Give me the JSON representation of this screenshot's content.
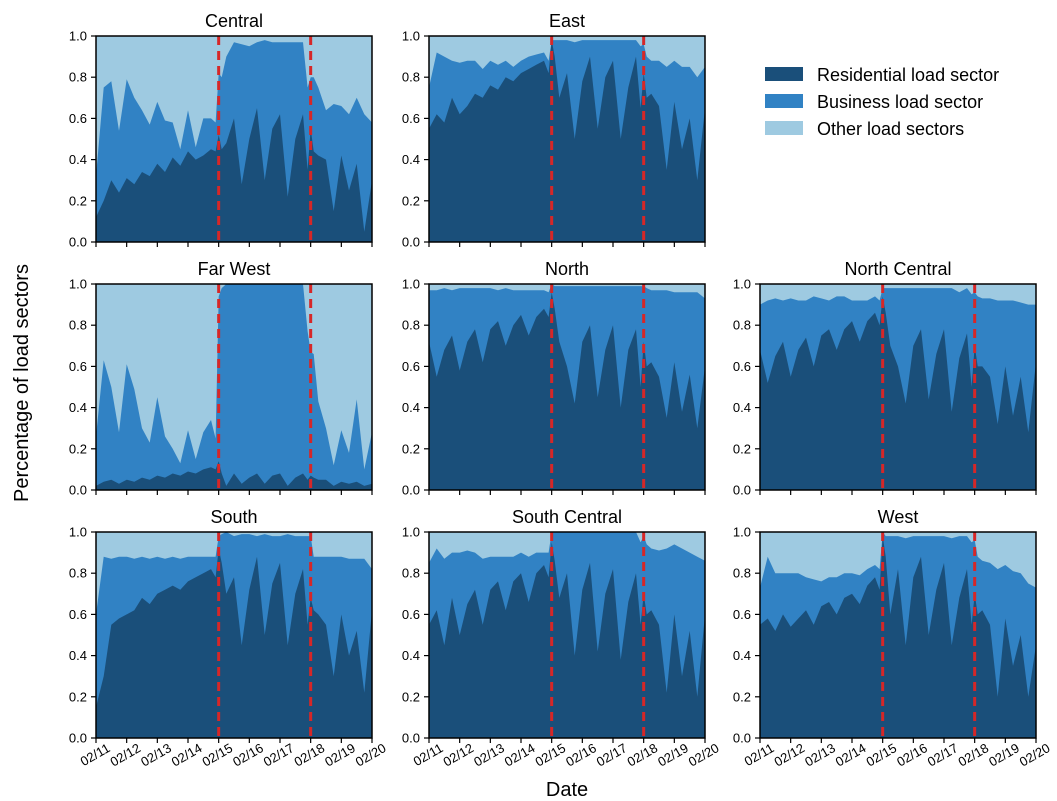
{
  "figure": {
    "ylabel": "Percentage of load sectors",
    "xlabel": "Date"
  },
  "legend": {
    "placement": "top-right",
    "items": [
      {
        "label": "Residential load sector",
        "color": "#1a4f7a"
      },
      {
        "label": "Business load sector",
        "color": "#3182c4"
      },
      {
        "label": "Other load sectors",
        "color": "#9ecae1"
      }
    ]
  },
  "chart_data": {
    "type": "area",
    "stacked": true,
    "x_ticks": [
      "02/11",
      "02/12",
      "02/13",
      "02/14",
      "02/15",
      "02/16",
      "02/17",
      "02/18",
      "02/19",
      "02/20"
    ],
    "y_ticks": [
      "0.0",
      "0.2",
      "0.4",
      "0.6",
      "0.8",
      "1.0"
    ],
    "xlim": [
      "02/11",
      "02/20"
    ],
    "ylim": [
      0,
      1
    ],
    "event_lines": {
      "dates": [
        "02/15",
        "02/18"
      ],
      "color": "#d62728",
      "style": "dashed"
    },
    "series_colors": {
      "residential": "#1a4f7a",
      "business": "#3182c4",
      "other": "#9ecae1"
    },
    "panels": [
      {
        "title": "Central",
        "x": [
          0,
          0.25,
          0.5,
          0.75,
          1,
          1.25,
          1.5,
          1.75,
          2,
          2.25,
          2.5,
          2.75,
          3,
          3.25,
          3.5,
          3.75,
          3.9,
          4.0,
          4.1,
          4.25,
          4.5,
          4.75,
          5,
          5.25,
          5.5,
          5.75,
          6,
          6.25,
          6.5,
          6.75,
          6.9,
          7.0,
          7.1,
          7.25,
          7.5,
          7.75,
          8,
          8.25,
          8.5,
          8.75,
          9
        ],
        "residential": [
          0.12,
          0.2,
          0.3,
          0.24,
          0.31,
          0.28,
          0.34,
          0.32,
          0.38,
          0.34,
          0.41,
          0.37,
          0.44,
          0.4,
          0.42,
          0.45,
          0.44,
          0.52,
          0.45,
          0.48,
          0.6,
          0.28,
          0.5,
          0.65,
          0.3,
          0.55,
          0.62,
          0.22,
          0.5,
          0.62,
          0.35,
          0.55,
          0.44,
          0.42,
          0.4,
          0.15,
          0.42,
          0.25,
          0.38,
          0.05,
          0.3
        ],
        "business": [
          0.2,
          0.55,
          0.48,
          0.3,
          0.48,
          0.42,
          0.3,
          0.25,
          0.3,
          0.25,
          0.17,
          0.08,
          0.2,
          0.06,
          0.18,
          0.15,
          0.14,
          0.3,
          0.35,
          0.42,
          0.37,
          0.68,
          0.45,
          0.32,
          0.68,
          0.42,
          0.35,
          0.75,
          0.47,
          0.35,
          0.4,
          0.25,
          0.36,
          0.33,
          0.24,
          0.52,
          0.24,
          0.37,
          0.32,
          0.57,
          0.28
        ]
      },
      {
        "title": "East",
        "x": [
          0,
          0.25,
          0.5,
          0.75,
          1,
          1.25,
          1.5,
          1.75,
          2,
          2.25,
          2.5,
          2.75,
          3,
          3.25,
          3.5,
          3.75,
          3.9,
          4.0,
          4.1,
          4.25,
          4.5,
          4.75,
          5,
          5.25,
          5.5,
          5.75,
          6,
          6.25,
          6.5,
          6.75,
          6.9,
          7.0,
          7.1,
          7.25,
          7.5,
          7.75,
          8,
          8.25,
          8.5,
          8.75,
          9
        ],
        "residential": [
          0.55,
          0.62,
          0.58,
          0.7,
          0.62,
          0.66,
          0.72,
          0.7,
          0.76,
          0.74,
          0.8,
          0.78,
          0.82,
          0.84,
          0.86,
          0.88,
          0.82,
          0.98,
          0.9,
          0.7,
          0.82,
          0.5,
          0.78,
          0.9,
          0.55,
          0.8,
          0.88,
          0.5,
          0.75,
          0.9,
          0.65,
          0.82,
          0.7,
          0.72,
          0.66,
          0.35,
          0.68,
          0.45,
          0.6,
          0.3,
          0.65
        ],
        "business": [
          0.2,
          0.3,
          0.32,
          0.18,
          0.25,
          0.22,
          0.16,
          0.14,
          0.12,
          0.12,
          0.08,
          0.07,
          0.06,
          0.06,
          0.05,
          0.04,
          0.06,
          0.0,
          0.08,
          0.28,
          0.16,
          0.47,
          0.2,
          0.08,
          0.43,
          0.18,
          0.1,
          0.48,
          0.23,
          0.08,
          0.3,
          0.14,
          0.2,
          0.16,
          0.22,
          0.5,
          0.2,
          0.4,
          0.25,
          0.5,
          0.2
        ]
      },
      {
        "title": "Far West",
        "x": [
          0,
          0.25,
          0.5,
          0.75,
          1,
          1.25,
          1.5,
          1.75,
          2,
          2.25,
          2.5,
          2.75,
          3,
          3.25,
          3.5,
          3.75,
          3.9,
          4.0,
          4.1,
          4.25,
          4.5,
          4.75,
          5,
          5.25,
          5.5,
          5.75,
          6,
          6.25,
          6.5,
          6.75,
          6.9,
          7.0,
          7.1,
          7.25,
          7.5,
          7.75,
          8,
          8.25,
          8.5,
          8.75,
          9
        ],
        "residential": [
          0.02,
          0.04,
          0.05,
          0.03,
          0.05,
          0.04,
          0.06,
          0.05,
          0.07,
          0.06,
          0.08,
          0.07,
          0.09,
          0.08,
          0.1,
          0.11,
          0.1,
          0.14,
          0.08,
          0.02,
          0.08,
          0.03,
          0.06,
          0.08,
          0.03,
          0.07,
          0.08,
          0.02,
          0.06,
          0.08,
          0.05,
          0.07,
          0.06,
          0.05,
          0.05,
          0.02,
          0.04,
          0.03,
          0.04,
          0.02,
          0.03
        ],
        "business": [
          0.24,
          0.59,
          0.45,
          0.25,
          0.56,
          0.45,
          0.24,
          0.18,
          0.38,
          0.2,
          0.12,
          0.06,
          0.2,
          0.07,
          0.18,
          0.23,
          0.15,
          0.8,
          0.9,
          0.98,
          0.92,
          0.97,
          0.94,
          0.92,
          0.97,
          0.93,
          0.92,
          0.98,
          0.94,
          0.92,
          0.72,
          0.6,
          0.6,
          0.38,
          0.25,
          0.1,
          0.25,
          0.15,
          0.4,
          0.08,
          0.25
        ]
      },
      {
        "title": "North",
        "x": [
          0,
          0.25,
          0.5,
          0.75,
          1,
          1.25,
          1.5,
          1.75,
          2,
          2.25,
          2.5,
          2.75,
          3,
          3.25,
          3.5,
          3.75,
          3.9,
          4.0,
          4.1,
          4.25,
          4.5,
          4.75,
          5,
          5.25,
          5.5,
          5.75,
          6,
          6.25,
          6.5,
          6.75,
          6.9,
          7.0,
          7.1,
          7.25,
          7.5,
          7.75,
          8,
          8.25,
          8.5,
          8.75,
          9
        ],
        "residential": [
          0.72,
          0.55,
          0.68,
          0.75,
          0.58,
          0.72,
          0.78,
          0.62,
          0.78,
          0.82,
          0.7,
          0.8,
          0.85,
          0.75,
          0.84,
          0.88,
          0.84,
          0.96,
          0.88,
          0.72,
          0.6,
          0.42,
          0.72,
          0.8,
          0.45,
          0.68,
          0.8,
          0.4,
          0.68,
          0.78,
          0.5,
          0.72,
          0.6,
          0.62,
          0.55,
          0.35,
          0.62,
          0.38,
          0.56,
          0.3,
          0.6
        ],
        "business": [
          0.25,
          0.42,
          0.3,
          0.22,
          0.4,
          0.26,
          0.2,
          0.36,
          0.2,
          0.15,
          0.28,
          0.17,
          0.12,
          0.22,
          0.13,
          0.09,
          0.12,
          0.04,
          0.11,
          0.27,
          0.39,
          0.57,
          0.27,
          0.19,
          0.54,
          0.31,
          0.19,
          0.59,
          0.31,
          0.21,
          0.49,
          0.27,
          0.38,
          0.35,
          0.42,
          0.62,
          0.34,
          0.58,
          0.4,
          0.66,
          0.33
        ]
      },
      {
        "title": "North Central",
        "x": [
          0,
          0.25,
          0.5,
          0.75,
          1,
          1.25,
          1.5,
          1.75,
          2,
          2.25,
          2.5,
          2.75,
          3,
          3.25,
          3.5,
          3.75,
          3.9,
          4.0,
          4.1,
          4.25,
          4.5,
          4.75,
          5,
          5.25,
          5.5,
          5.75,
          6,
          6.25,
          6.5,
          6.75,
          6.9,
          7.0,
          7.1,
          7.25,
          7.5,
          7.75,
          8,
          8.25,
          8.5,
          8.75,
          9
        ],
        "residential": [
          0.68,
          0.52,
          0.65,
          0.72,
          0.55,
          0.68,
          0.74,
          0.6,
          0.75,
          0.78,
          0.68,
          0.78,
          0.82,
          0.72,
          0.82,
          0.86,
          0.8,
          0.94,
          0.86,
          0.7,
          0.6,
          0.42,
          0.7,
          0.78,
          0.44,
          0.66,
          0.78,
          0.38,
          0.64,
          0.76,
          0.5,
          0.7,
          0.6,
          0.6,
          0.55,
          0.32,
          0.6,
          0.36,
          0.55,
          0.28,
          0.62
        ],
        "business": [
          0.22,
          0.4,
          0.28,
          0.2,
          0.38,
          0.24,
          0.18,
          0.34,
          0.18,
          0.14,
          0.26,
          0.16,
          0.1,
          0.2,
          0.1,
          0.08,
          0.12,
          0.04,
          0.12,
          0.28,
          0.38,
          0.56,
          0.28,
          0.2,
          0.54,
          0.32,
          0.2,
          0.6,
          0.32,
          0.22,
          0.45,
          0.26,
          0.34,
          0.33,
          0.38,
          0.6,
          0.32,
          0.56,
          0.36,
          0.62,
          0.28
        ]
      },
      {
        "title": "South",
        "x": [
          0,
          0.25,
          0.5,
          0.75,
          1,
          1.25,
          1.5,
          1.75,
          2,
          2.25,
          2.5,
          2.75,
          3,
          3.25,
          3.5,
          3.75,
          3.9,
          4.0,
          4.1,
          4.25,
          4.5,
          4.75,
          5,
          5.25,
          5.5,
          5.75,
          6,
          6.25,
          6.5,
          6.75,
          6.9,
          7.0,
          7.1,
          7.25,
          7.5,
          7.75,
          8,
          8.25,
          8.5,
          8.75,
          9
        ],
        "residential": [
          0.15,
          0.3,
          0.55,
          0.58,
          0.6,
          0.62,
          0.68,
          0.65,
          0.7,
          0.72,
          0.74,
          0.72,
          0.76,
          0.78,
          0.8,
          0.82,
          0.78,
          0.92,
          0.85,
          0.7,
          0.78,
          0.45,
          0.72,
          0.88,
          0.5,
          0.75,
          0.85,
          0.45,
          0.7,
          0.82,
          0.55,
          0.68,
          0.62,
          0.6,
          0.55,
          0.3,
          0.6,
          0.4,
          0.52,
          0.22,
          0.62
        ],
        "business": [
          0.45,
          0.58,
          0.32,
          0.3,
          0.28,
          0.25,
          0.2,
          0.22,
          0.18,
          0.15,
          0.14,
          0.15,
          0.12,
          0.1,
          0.08,
          0.06,
          0.1,
          0.06,
          0.14,
          0.3,
          0.2,
          0.54,
          0.27,
          0.1,
          0.49,
          0.23,
          0.13,
          0.54,
          0.28,
          0.16,
          0.43,
          0.3,
          0.26,
          0.28,
          0.33,
          0.58,
          0.28,
          0.47,
          0.35,
          0.65,
          0.2
        ]
      },
      {
        "title": "South Central",
        "x": [
          0,
          0.25,
          0.5,
          0.75,
          1,
          1.25,
          1.5,
          1.75,
          2,
          2.25,
          2.5,
          2.75,
          3,
          3.25,
          3.5,
          3.75,
          3.9,
          4.0,
          4.1,
          4.25,
          4.5,
          4.75,
          5,
          5.25,
          5.5,
          5.75,
          6,
          6.25,
          6.5,
          6.75,
          6.9,
          7.0,
          7.1,
          7.25,
          7.5,
          7.75,
          8,
          8.25,
          8.5,
          8.75,
          9
        ],
        "residential": [
          0.55,
          0.62,
          0.45,
          0.68,
          0.5,
          0.65,
          0.72,
          0.55,
          0.72,
          0.76,
          0.62,
          0.76,
          0.8,
          0.66,
          0.8,
          0.84,
          0.78,
          0.95,
          0.86,
          0.68,
          0.8,
          0.4,
          0.72,
          0.85,
          0.42,
          0.7,
          0.82,
          0.38,
          0.66,
          0.8,
          0.55,
          0.7,
          0.6,
          0.62,
          0.55,
          0.22,
          0.6,
          0.3,
          0.52,
          0.2,
          0.6
        ],
        "business": [
          0.3,
          0.3,
          0.42,
          0.22,
          0.4,
          0.26,
          0.18,
          0.32,
          0.16,
          0.12,
          0.26,
          0.12,
          0.1,
          0.22,
          0.1,
          0.06,
          0.12,
          0.05,
          0.14,
          0.32,
          0.2,
          0.6,
          0.28,
          0.15,
          0.58,
          0.3,
          0.18,
          0.62,
          0.34,
          0.2,
          0.4,
          0.28,
          0.34,
          0.3,
          0.36,
          0.7,
          0.34,
          0.62,
          0.38,
          0.68,
          0.26
        ]
      },
      {
        "title": "West",
        "x": [
          0,
          0.25,
          0.5,
          0.75,
          1,
          1.25,
          1.5,
          1.75,
          2,
          2.25,
          2.5,
          2.75,
          3,
          3.25,
          3.5,
          3.75,
          3.9,
          4.0,
          4.1,
          4.25,
          4.5,
          4.75,
          5,
          5.25,
          5.5,
          5.75,
          6,
          6.25,
          6.5,
          6.75,
          6.9,
          7.0,
          7.1,
          7.25,
          7.5,
          7.75,
          8,
          8.25,
          8.5,
          8.75,
          9
        ],
        "residential": [
          0.55,
          0.58,
          0.52,
          0.6,
          0.54,
          0.58,
          0.62,
          0.55,
          0.64,
          0.66,
          0.6,
          0.68,
          0.7,
          0.65,
          0.74,
          0.78,
          0.72,
          0.98,
          0.88,
          0.6,
          0.82,
          0.45,
          0.78,
          0.88,
          0.5,
          0.72,
          0.85,
          0.45,
          0.68,
          0.82,
          0.55,
          0.7,
          0.6,
          0.62,
          0.55,
          0.2,
          0.58,
          0.35,
          0.5,
          0.2,
          0.45
        ],
        "business": [
          0.18,
          0.3,
          0.28,
          0.2,
          0.26,
          0.22,
          0.16,
          0.22,
          0.12,
          0.12,
          0.18,
          0.12,
          0.1,
          0.14,
          0.08,
          0.06,
          0.1,
          0.02,
          0.1,
          0.38,
          0.16,
          0.52,
          0.2,
          0.1,
          0.48,
          0.26,
          0.13,
          0.52,
          0.3,
          0.16,
          0.4,
          0.26,
          0.28,
          0.24,
          0.3,
          0.62,
          0.26,
          0.46,
          0.3,
          0.55,
          0.28
        ]
      }
    ]
  }
}
